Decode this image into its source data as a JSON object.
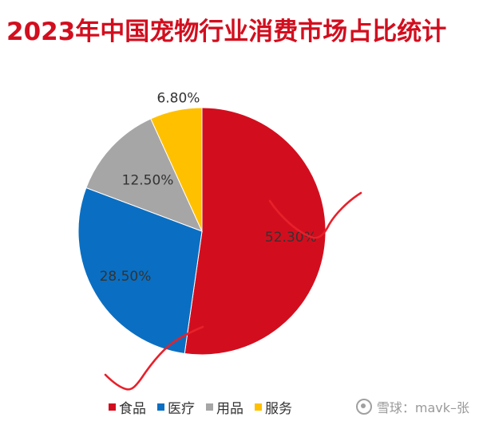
{
  "chart_data": {
    "type": "pie",
    "title": "2023年中国宠物行业消费市场占比统计",
    "categories": [
      "食品",
      "医疗",
      "用品",
      "服务"
    ],
    "values": [
      52.3,
      28.5,
      12.5,
      6.8
    ],
    "labels": [
      "52.30%",
      "28.50%",
      "12.50%",
      "6.80%"
    ],
    "colors": [
      "#d20e1e",
      "#0a6fc2",
      "#a6a6a6",
      "#ffc000"
    ],
    "start_angle_deg": 0,
    "direction": "clockwise",
    "legend_position": "bottom",
    "legend": [
      "食品",
      "医疗",
      "用品",
      "服务"
    ]
  },
  "watermark": {
    "text": "雪球：mavk–张",
    "icon": "snowball-logo-icon"
  },
  "annotation": {
    "color": "#e8202a",
    "description_icon": "red-hand-drawn-checkmarks"
  }
}
